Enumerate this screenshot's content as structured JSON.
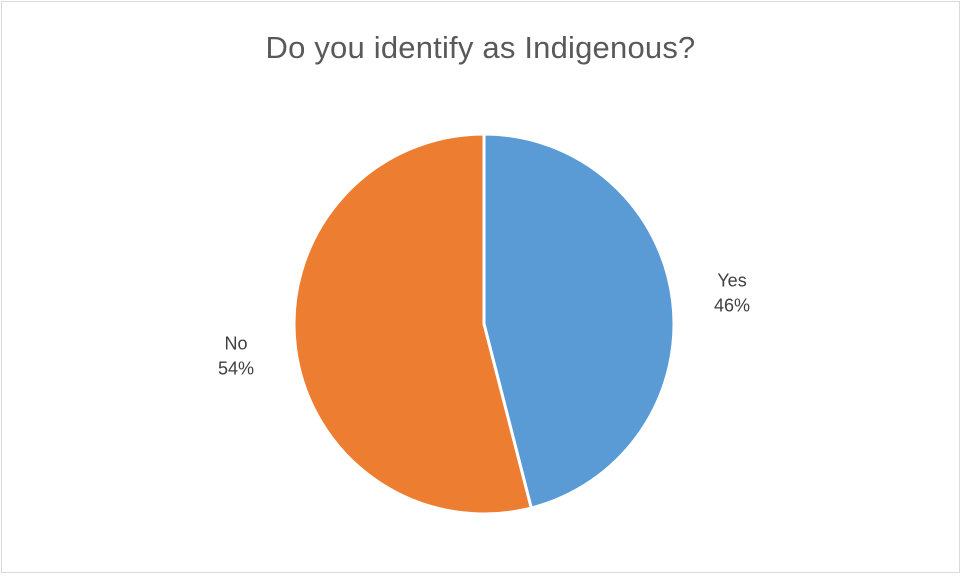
{
  "chart_data": {
    "type": "pie",
    "title": "Do you identify as Indigenous?",
    "slices": [
      {
        "label": "Yes",
        "value": 46,
        "value_label": "46%",
        "color": "#5b9bd5"
      },
      {
        "label": "No",
        "value": 54,
        "value_label": "54%",
        "color": "#ed7d31"
      }
    ],
    "start_angle": "12 o'clock",
    "direction": "clockwise",
    "legend": "none",
    "data_labels": "outside, category name and percentage"
  }
}
